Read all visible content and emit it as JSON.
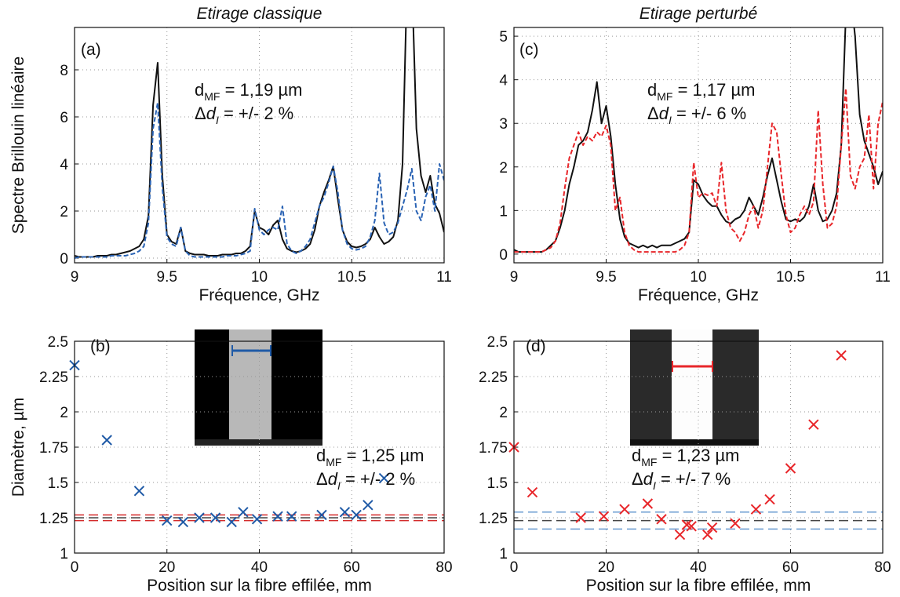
{
  "chart_data": [
    {
      "type": "line",
      "title": "Etirage classique",
      "panel_label": "(a)",
      "xlabel": "Fréquence, GHz",
      "ylabel": "Spectre Brillouin linéaire",
      "x": [
        9,
        9.025,
        9.05,
        9.075,
        9.1,
        9.125,
        9.15,
        9.175,
        9.2,
        9.225,
        9.25,
        9.275,
        9.3,
        9.325,
        9.35,
        9.375,
        9.4,
        9.425,
        9.45,
        9.475,
        9.5,
        9.525,
        9.55,
        9.575,
        9.6,
        9.625,
        9.65,
        9.675,
        9.7,
        9.725,
        9.75,
        9.775,
        9.8,
        9.825,
        9.85,
        9.875,
        9.9,
        9.925,
        9.95,
        9.975,
        10,
        10.025,
        10.05,
        10.075,
        10.1,
        10.125,
        10.15,
        10.175,
        10.2,
        10.225,
        10.25,
        10.275,
        10.3,
        10.325,
        10.35,
        10.375,
        10.4,
        10.425,
        10.45,
        10.475,
        10.5,
        10.525,
        10.55,
        10.575,
        10.6,
        10.625,
        10.65,
        10.675,
        10.7,
        10.725,
        10.75,
        10.775,
        10.8,
        10.825,
        10.85,
        10.875,
        10.9,
        10.925,
        10.95,
        10.975,
        11
      ],
      "series": [
        {
          "color": "#111111",
          "dashed": false,
          "values": [
            0.1,
            0.05,
            0.05,
            0.05,
            0.05,
            0.1,
            0.1,
            0.1,
            0.15,
            0.15,
            0.2,
            0.25,
            0.3,
            0.4,
            0.5,
            0.8,
            1.8,
            6.5,
            8.3,
            3.5,
            1.0,
            0.7,
            0.6,
            1.3,
            0.3,
            0.2,
            0.15,
            0.15,
            0.15,
            0.1,
            0.1,
            0.1,
            0.15,
            0.15,
            0.15,
            0.2,
            0.2,
            0.3,
            0.5,
            2.0,
            1.3,
            1.2,
            1.0,
            1.4,
            1.6,
            0.8,
            0.4,
            0.3,
            0.25,
            0.3,
            0.4,
            0.6,
            1.2,
            2.2,
            2.8,
            3.3,
            3.9,
            2.5,
            1.2,
            0.7,
            0.5,
            0.45,
            0.5,
            0.6,
            0.8,
            1.3,
            0.9,
            0.6,
            0.7,
            0.9,
            1.6,
            4.0,
            12,
            12,
            5.5,
            3.5,
            2.8,
            3.5,
            2.3,
            1.9,
            1.1
          ]
        },
        {
          "color": "#2a63b4",
          "dashed": true,
          "values": [
            0,
            0.05,
            0.05,
            0.05,
            0.05,
            0.05,
            0.05,
            0.05,
            0.1,
            0.1,
            0.1,
            0.1,
            0.15,
            0.2,
            0.3,
            0.5,
            1.5,
            5.5,
            6.6,
            3.0,
            0.9,
            0.6,
            0.5,
            1.3,
            0.3,
            0.1,
            0.05,
            0.05,
            0.05,
            0.05,
            0.05,
            0.05,
            0.05,
            0.1,
            0.1,
            0.1,
            0.15,
            0.2,
            0.3,
            2.1,
            1.2,
            1.0,
            1.2,
            1.3,
            1.2,
            2.2,
            0.6,
            0.3,
            0.2,
            0.3,
            0.5,
            0.8,
            1.5,
            2.2,
            2.6,
            3.2,
            3.9,
            2.8,
            1.2,
            0.6,
            0.4,
            0.35,
            0.4,
            0.5,
            0.9,
            1.6,
            3.6,
            1.5,
            1.0,
            1.1,
            1.5,
            2.2,
            2.9,
            3.8,
            2.0,
            1.6,
            2.6,
            3.1,
            2.0,
            4.0,
            3.3
          ]
        }
      ],
      "xlim": [
        9,
        11
      ],
      "xticks": [
        9,
        9.5,
        10,
        10.5,
        11
      ],
      "ylim": [
        -0.2,
        9.8
      ],
      "yticks": [
        0,
        2,
        4,
        6,
        8
      ],
      "grid": true,
      "annotations": [
        [
          {
            "text": "d"
          },
          {
            "text": "MF",
            "sub": true
          },
          {
            "text": " = 1,19 µm"
          }
        ],
        [
          {
            "text": "Δ"
          },
          {
            "text": "d",
            "italic": true
          },
          {
            "text": "I",
            "sub": true,
            "italic": true
          },
          {
            "text": " = +/- 2 %"
          }
        ]
      ]
    },
    {
      "type": "scatter",
      "panel_label": "(b)",
      "xlabel": "Position sur la fibre effilée, mm",
      "ylabel": "Diamètre, µm",
      "x": [
        0,
        7,
        14,
        20,
        23.5,
        27,
        30.5,
        34,
        36.5,
        39.5,
        44,
        47,
        53.5,
        58.5,
        61,
        63.5,
        67
      ],
      "series": [
        {
          "color": "#1f5aa6",
          "marker": "x",
          "values": [
            2.33,
            1.8,
            1.44,
            1.23,
            1.22,
            1.25,
            1.25,
            1.22,
            1.29,
            1.24,
            1.26,
            1.26,
            1.27,
            1.29,
            1.27,
            1.34,
            1.53
          ]
        }
      ],
      "hlines": [
        {
          "value": 1.27,
          "color": "#d42a2a"
        },
        {
          "value": 1.25,
          "color": "#444444"
        },
        {
          "value": 1.23,
          "color": "#d42a2a"
        }
      ],
      "xlim": [
        0,
        80
      ],
      "xticks": [
        0,
        20,
        40,
        60,
        80
      ],
      "ylim": [
        1,
        2.5
      ],
      "yticks": [
        1,
        1.25,
        1.5,
        1.75,
        2,
        2.25,
        2.5
      ],
      "grid": true,
      "annotations": [
        [
          {
            "text": "d"
          },
          {
            "text": "MF",
            "sub": true
          },
          {
            "text": " = 1,25 µm"
          }
        ],
        [
          {
            "text": "Δ"
          },
          {
            "text": "d",
            "italic": true
          },
          {
            "text": "I",
            "sub": true,
            "italic": true
          },
          {
            "text": " = +/- 2 %"
          }
        ]
      ]
    },
    {
      "type": "line",
      "title": "Etirage perturbé",
      "panel_label": "(c)",
      "xlabel": "Fréquence, GHz",
      "x": [
        9,
        9.025,
        9.05,
        9.075,
        9.1,
        9.125,
        9.15,
        9.175,
        9.2,
        9.225,
        9.25,
        9.275,
        9.3,
        9.325,
        9.35,
        9.375,
        9.4,
        9.425,
        9.45,
        9.475,
        9.5,
        9.525,
        9.55,
        9.575,
        9.6,
        9.625,
        9.65,
        9.675,
        9.7,
        9.725,
        9.75,
        9.775,
        9.8,
        9.825,
        9.85,
        9.875,
        9.9,
        9.925,
        9.95,
        9.975,
        10,
        10.025,
        10.05,
        10.075,
        10.1,
        10.125,
        10.15,
        10.175,
        10.2,
        10.225,
        10.25,
        10.275,
        10.3,
        10.325,
        10.35,
        10.375,
        10.4,
        10.425,
        10.45,
        10.475,
        10.5,
        10.525,
        10.55,
        10.575,
        10.6,
        10.625,
        10.65,
        10.675,
        10.7,
        10.725,
        10.75,
        10.775,
        10.8,
        10.825,
        10.85,
        10.875,
        10.9,
        10.925,
        10.95,
        10.975,
        11
      ],
      "series": [
        {
          "color": "#111111",
          "dashed": false,
          "values": [
            0.1,
            0.05,
            0.05,
            0.05,
            0.05,
            0.05,
            0.05,
            0.1,
            0.2,
            0.3,
            0.6,
            1.0,
            1.6,
            2.0,
            2.5,
            2.6,
            2.8,
            3.3,
            3.95,
            3.0,
            3.4,
            2.7,
            1.6,
            0.8,
            0.4,
            0.25,
            0.2,
            0.15,
            0.2,
            0.15,
            0.2,
            0.15,
            0.2,
            0.2,
            0.2,
            0.25,
            0.3,
            0.35,
            0.5,
            1.7,
            1.6,
            1.35,
            1.2,
            1.1,
            1.1,
            0.9,
            0.75,
            0.7,
            0.8,
            0.85,
            1.0,
            1.3,
            1.1,
            0.9,
            1.3,
            1.8,
            2.2,
            1.7,
            1.2,
            0.8,
            0.75,
            0.8,
            0.75,
            0.85,
            1.1,
            1.6,
            1.0,
            0.75,
            0.8,
            1.0,
            1.4,
            2.5,
            5.5,
            6,
            5.0,
            3.2,
            2.6,
            2.3,
            2.0,
            1.6,
            1.9
          ]
        },
        {
          "color": "#e8262a",
          "dashed": true,
          "values": [
            0.05,
            0.05,
            0.05,
            0.05,
            0.05,
            0.05,
            0.05,
            0.1,
            0.15,
            0.3,
            0.7,
            1.5,
            2.2,
            2.5,
            2.8,
            2.5,
            2.7,
            2.6,
            2.8,
            2.7,
            2.95,
            2.5,
            1.0,
            1.3,
            0.5,
            0.2,
            0.1,
            0.05,
            0.05,
            0.05,
            0.05,
            0.05,
            0.05,
            0.05,
            0.05,
            0.05,
            0.1,
            0.2,
            0.5,
            2.1,
            1.3,
            1.4,
            1.35,
            1.4,
            1.1,
            2.1,
            1.0,
            0.6,
            0.5,
            0.3,
            0.5,
            0.9,
            1.1,
            0.6,
            1.0,
            2.0,
            3.0,
            2.8,
            1.8,
            0.9,
            0.5,
            0.6,
            0.9,
            1.1,
            0.9,
            1.2,
            3.3,
            1.6,
            0.6,
            0.7,
            1.1,
            2.5,
            3.8,
            1.8,
            1.5,
            2.0,
            2.2,
            3.2,
            1.5,
            3.0,
            3.5
          ]
        }
      ],
      "xlim": [
        9,
        11
      ],
      "xticks": [
        9,
        9.5,
        10,
        10.5,
        11
      ],
      "ylim": [
        -0.2,
        5.2
      ],
      "yticks": [
        0,
        1,
        2,
        3,
        4,
        5
      ],
      "grid": true,
      "annotations": [
        [
          {
            "text": "d"
          },
          {
            "text": "MF",
            "sub": true
          },
          {
            "text": " = 1,17 µm"
          }
        ],
        [
          {
            "text": "Δ"
          },
          {
            "text": "d",
            "italic": true
          },
          {
            "text": "I",
            "sub": true,
            "italic": true
          },
          {
            "text": " = +/- 6 %"
          }
        ]
      ]
    },
    {
      "type": "scatter",
      "panel_label": "(d)",
      "xlabel": "Position sur la fibre effilée, mm",
      "x": [
        0,
        4,
        14.5,
        19.5,
        24,
        29,
        32,
        36,
        37.5,
        38.5,
        42,
        43,
        48,
        52.5,
        55.5,
        60,
        65,
        71
      ],
      "series": [
        {
          "color": "#e8262a",
          "marker": "x",
          "values": [
            1.75,
            1.43,
            1.25,
            1.26,
            1.31,
            1.35,
            1.24,
            1.13,
            1.2,
            1.19,
            1.13,
            1.18,
            1.21,
            1.31,
            1.38,
            1.6,
            1.91,
            2.4
          ]
        }
      ],
      "hlines": [
        {
          "value": 1.29,
          "color": "#6a9bd0"
        },
        {
          "value": 1.23,
          "color": "#444444"
        },
        {
          "value": 1.17,
          "color": "#6a9bd0"
        }
      ],
      "xlim": [
        0,
        80
      ],
      "xticks": [
        0,
        20,
        40,
        60,
        80
      ],
      "ylim": [
        1,
        2.5
      ],
      "yticks": [
        1,
        1.25,
        1.5,
        1.75,
        2,
        2.25,
        2.5
      ],
      "grid": true,
      "annotations": [
        [
          {
            "text": "d"
          },
          {
            "text": "MF",
            "sub": true
          },
          {
            "text": " = 1,23  µm"
          }
        ],
        [
          {
            "text": "Δ"
          },
          {
            "text": "d",
            "italic": true
          },
          {
            "text": "I",
            "sub": true,
            "italic": true
          },
          {
            "text": " = +/- 7 %"
          }
        ]
      ]
    }
  ]
}
